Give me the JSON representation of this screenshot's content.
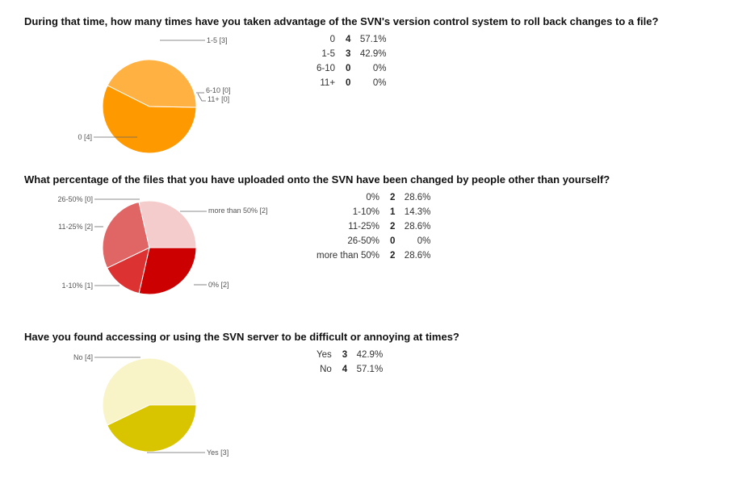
{
  "chart_data": [
    {
      "type": "pie",
      "title": "During that time, how many times have you taken advantage of the SVN's version control system to roll back changes to a file?",
      "categories": [
        "0",
        "1-5",
        "6-10",
        "11+"
      ],
      "values": [
        4,
        3,
        0,
        0
      ],
      "percentages": [
        "57.1%",
        "42.9%",
        "0%",
        "0%"
      ],
      "colors": [
        "#ff9900",
        "#ffb142",
        "#ffc46e",
        "#ffd699"
      ],
      "slice_labels": [
        "0 [4]",
        "1-5 [3]",
        "6-10 [0]",
        "11+ [0]"
      ],
      "legend": "right"
    },
    {
      "type": "pie",
      "title": "What percentage of the files that you have uploaded onto the SVN have been changed by people other than yourself?",
      "categories": [
        "0%",
        "1-10%",
        "11-25%",
        "26-50%",
        "more than 50%"
      ],
      "values": [
        2,
        1,
        2,
        0,
        2
      ],
      "percentages": [
        "28.6%",
        "14.3%",
        "28.6%",
        "0%",
        "28.6%"
      ],
      "colors": [
        "#cc0000",
        "#dc3232",
        "#e06666",
        "#ea9999",
        "#f4cccc"
      ],
      "slice_labels": [
        "0% [2]",
        "1-10% [1]",
        "11-25% [2]",
        "26-50% [0]",
        "more than 50% [2]"
      ],
      "legend": "right"
    },
    {
      "type": "pie",
      "title": "Have you found accessing or using the SVN server to be difficult or annoying at times?",
      "categories": [
        "Yes",
        "No"
      ],
      "values": [
        3,
        4
      ],
      "percentages": [
        "42.9%",
        "57.1%"
      ],
      "colors": [
        "#d8c500",
        "#f8f4c8"
      ],
      "slice_labels": [
        "Yes [3]",
        "No [4]"
      ],
      "legend": "right"
    }
  ]
}
